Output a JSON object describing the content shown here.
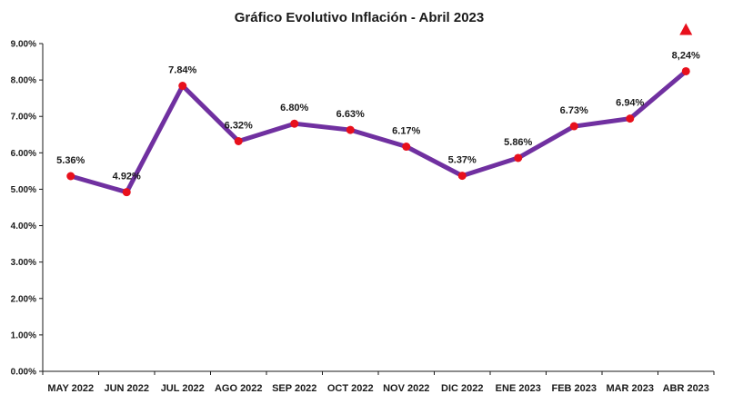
{
  "chart_data": {
    "type": "line",
    "title": "Gráfico Evolutivo Inflación - Abril 2023",
    "xlabel": "",
    "ylabel": "",
    "categories": [
      "MAY 2022",
      "JUN 2022",
      "JUL 2022",
      "AGO 2022",
      "SEP 2022",
      "OCT 2022",
      "NOV 2022",
      "DIC 2022",
      "ENE 2023",
      "FEB 2023",
      "MAR 2023",
      "ABR 2023"
    ],
    "values": [
      5.36,
      4.92,
      7.84,
      6.32,
      6.8,
      6.63,
      6.17,
      5.37,
      5.86,
      6.73,
      6.94,
      8.24
    ],
    "data_labels": [
      "5.36%",
      "4.92%",
      "7.84%",
      "6.32%",
      "6.80%",
      "6.63%",
      "6.17%",
      "5.37%",
      "5.86%",
      "6.73%",
      "6.94%",
      "8,24%"
    ],
    "ylim": [
      0,
      9
    ],
    "y_ticks": [
      0,
      1,
      2,
      3,
      4,
      5,
      6,
      7,
      8,
      9
    ],
    "y_tick_labels": [
      "0.00%",
      "1.00%",
      "2.00%",
      "3.00%",
      "4.00%",
      "5.00%",
      "6.00%",
      "7.00%",
      "8.00%",
      "9.00%"
    ],
    "grid": false,
    "line_color": "#7030a0",
    "marker_color": "#e8101c",
    "highlight_indicator": "up-triangle",
    "highlight_color": "#e8101c"
  }
}
